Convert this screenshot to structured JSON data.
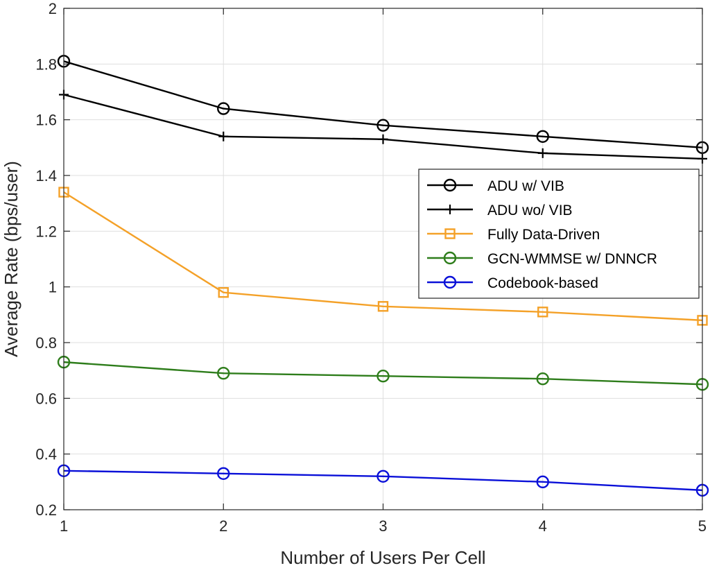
{
  "chart_data": {
    "type": "line",
    "xlabel": "Number of Users Per Cell",
    "ylabel": "Average Rate (bps/user)",
    "x": [
      1,
      2,
      3,
      4,
      5
    ],
    "xlim": [
      1,
      5
    ],
    "ylim": [
      0.2,
      2
    ],
    "xticks": [
      "1",
      "2",
      "3",
      "4",
      "5"
    ],
    "yticks": [
      "0.2",
      "0.4",
      "0.6",
      "0.8",
      "1",
      "1.2",
      "1.4",
      "1.6",
      "1.8",
      "2"
    ],
    "grid": true,
    "legend_position": "right",
    "series": [
      {
        "name": "ADU w/ VIB",
        "values": [
          1.81,
          1.64,
          1.58,
          1.54,
          1.5
        ],
        "color": "#000000",
        "marker": "circle"
      },
      {
        "name": "ADU wo/ VIB",
        "values": [
          1.69,
          1.54,
          1.53,
          1.48,
          1.46
        ],
        "color": "#000000",
        "marker": "plus"
      },
      {
        "name": "Fully Data-Driven",
        "values": [
          1.34,
          0.98,
          0.93,
          0.91,
          0.88
        ],
        "color": "#F4A128",
        "marker": "square"
      },
      {
        "name": "GCN-WMMSE w/ DNNCR",
        "values": [
          0.73,
          0.69,
          0.68,
          0.67,
          0.65
        ],
        "color": "#2E7D1B",
        "marker": "circle"
      },
      {
        "name": "Codebook-based",
        "values": [
          0.34,
          0.33,
          0.32,
          0.3,
          0.27
        ],
        "color": "#0A10D8",
        "marker": "circle"
      }
    ]
  }
}
